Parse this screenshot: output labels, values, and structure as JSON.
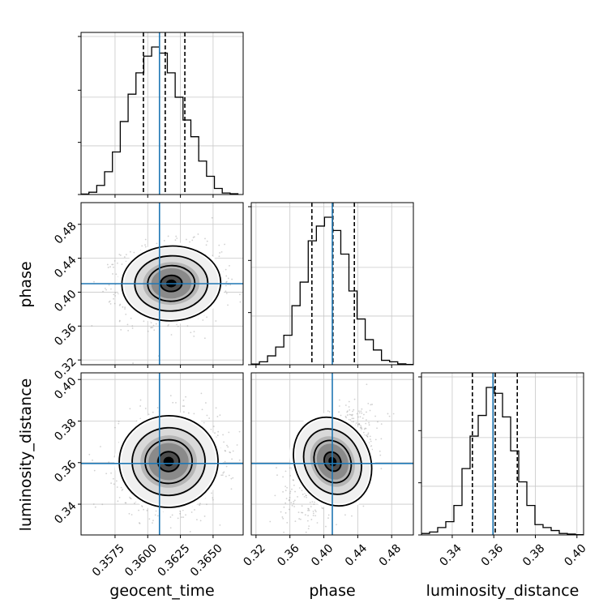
{
  "chart_data": {
    "type": "corner",
    "parameters": [
      "geocent_time",
      "phase",
      "luminosity_distance"
    ],
    "true_values": {
      "geocent_time": 0.3609,
      "phase": 0.41,
      "luminosity_distance": 0.3596
    },
    "injection_color": "#1f77b4",
    "histogram_color": "#000000",
    "grid": true,
    "ranges": {
      "geocent_time": [
        0.3549,
        0.3673
      ],
      "phase": [
        0.3144,
        0.5056
      ],
      "luminosity_distance": [
        0.3252,
        0.4032
      ]
    },
    "ticks": {
      "geocent_time": {
        "values": [
          0.3575,
          0.36,
          0.3625,
          0.365
        ],
        "labels": [
          "0.3575",
          "0.3600",
          "0.3625",
          "0.3650"
        ]
      },
      "phase": {
        "values": [
          0.32,
          0.36,
          0.4,
          0.44,
          0.48
        ],
        "labels": [
          "0.32",
          "0.36",
          "0.40",
          "0.44",
          "0.48"
        ]
      },
      "luminosity_distance": {
        "values": [
          0.34,
          0.36,
          0.38,
          0.4
        ],
        "labels": [
          "0.34",
          "0.36",
          "0.38",
          "0.40"
        ]
      }
    },
    "marginals": {
      "geocent_time": {
        "quantiles": [
          0.35967,
          0.36134,
          0.36284
        ],
        "bin_edges": [
          0.3549,
          0.3555,
          0.3561,
          0.3567,
          0.3573,
          0.3579,
          0.3585,
          0.3591,
          0.3597,
          0.3603,
          0.3609,
          0.3615,
          0.3621,
          0.3627,
          0.3633,
          0.3639,
          0.3645,
          0.3651,
          0.3657,
          0.3663,
          0.3669
        ],
        "counts": [
          0.3,
          1.5,
          6,
          15,
          28,
          48,
          66,
          80,
          91,
          97,
          93,
          80,
          64,
          49,
          38,
          22,
          12,
          4,
          1,
          0.5
        ]
      },
      "phase": {
        "quantiles": [
          0.3859,
          0.4107,
          0.436
        ],
        "bin_edges": [
          0.3144,
          0.324,
          0.3336,
          0.3432,
          0.3528,
          0.3624,
          0.372,
          0.3816,
          0.3912,
          0.4008,
          0.4104,
          0.42,
          0.4296,
          0.4392,
          0.4488,
          0.4584,
          0.468,
          0.4776,
          0.4872,
          0.4968,
          0.5064
        ],
        "counts": [
          0.5,
          2,
          6,
          12,
          20,
          40,
          56,
          84,
          94,
          100,
          91,
          75,
          50,
          31,
          17,
          10,
          3,
          2,
          0.6,
          0.2
        ]
      },
      "luminosity_distance": {
        "quantiles": [
          0.3497,
          0.3607,
          0.3713
        ],
        "bin_edges": [
          0.3252,
          0.3291,
          0.333,
          0.3369,
          0.3408,
          0.3447,
          0.3486,
          0.3525,
          0.3564,
          0.3603,
          0.3642,
          0.3681,
          0.372,
          0.3759,
          0.3798,
          0.3837,
          0.3876,
          0.3915,
          0.3954,
          0.3993,
          0.4032
        ],
        "counts": [
          1,
          2,
          5,
          9,
          20,
          45,
          67,
          81,
          100,
          96,
          80,
          57,
          36,
          20,
          7,
          5,
          3,
          1,
          0.6,
          0.2
        ]
      }
    },
    "joints": [
      {
        "x": "geocent_time",
        "y": "phase",
        "mean": [
          0.3618,
          0.4103
        ],
        "sd": [
          0.0018,
          0.021
        ],
        "corr": 0.05
      },
      {
        "x": "geocent_time",
        "y": "luminosity_distance",
        "mean": [
          0.3616,
          0.3605
        ],
        "sd": [
          0.0018,
          0.0105
        ],
        "corr": 0.05
      },
      {
        "x": "phase",
        "y": "luminosity_distance",
        "mean": [
          0.4103,
          0.3605
        ],
        "sd": [
          0.021,
          0.0105
        ],
        "corr": 0.55
      }
    ]
  }
}
